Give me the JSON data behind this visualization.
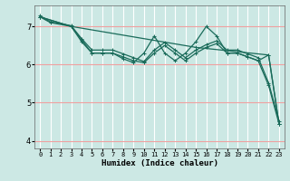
{
  "xlabel": "Humidex (Indice chaleur)",
  "ylabel": "",
  "background_color": "#cce8e4",
  "grid_color": "#f5b8b8",
  "line_color": "#1a6b5a",
  "xlim": [
    -0.5,
    23.5
  ],
  "ylim": [
    3.8,
    7.55
  ],
  "yticks": [
    4,
    5,
    6,
    7
  ],
  "xticks": [
    0,
    1,
    2,
    3,
    4,
    5,
    6,
    7,
    8,
    9,
    10,
    11,
    12,
    13,
    14,
    15,
    16,
    17,
    18,
    19,
    20,
    21,
    22,
    23
  ],
  "lines": [
    {
      "x": [
        0,
        1,
        3,
        4,
        5,
        6,
        7,
        8,
        9,
        10,
        11,
        12,
        13,
        14,
        15,
        16,
        17,
        18,
        19,
        20,
        21,
        22,
        23
      ],
      "y": [
        7.25,
        7.1,
        7.0,
        6.65,
        6.3,
        6.3,
        6.3,
        6.2,
        6.1,
        6.05,
        6.3,
        6.5,
        6.3,
        6.1,
        6.3,
        6.45,
        6.55,
        6.3,
        6.3,
        6.2,
        6.1,
        5.45,
        4.45
      ]
    },
    {
      "x": [
        0,
        1,
        3,
        4,
        5,
        6,
        7,
        8,
        9,
        10,
        11,
        12,
        13,
        14,
        15,
        16,
        17,
        18,
        19,
        20,
        21,
        22,
        23
      ],
      "y": [
        7.28,
        7.12,
        7.02,
        6.68,
        6.38,
        6.38,
        6.38,
        6.28,
        6.18,
        6.08,
        6.38,
        6.58,
        6.38,
        6.18,
        6.38,
        6.52,
        6.62,
        6.38,
        6.38,
        6.28,
        6.18,
        5.52,
        4.52
      ]
    },
    {
      "x": [
        0,
        3,
        15,
        22,
        23
      ],
      "y": [
        7.25,
        7.0,
        6.45,
        6.25,
        4.45
      ]
    },
    {
      "x": [
        0,
        3,
        4,
        5,
        6,
        7,
        8,
        9,
        10,
        11,
        12,
        13,
        14,
        15,
        16,
        17,
        18,
        19,
        20,
        21,
        22,
        23
      ],
      "y": [
        7.25,
        7.0,
        6.6,
        6.3,
        6.3,
        6.3,
        6.15,
        6.05,
        6.3,
        6.75,
        6.3,
        6.1,
        6.3,
        6.6,
        7.0,
        6.75,
        6.3,
        6.3,
        6.2,
        6.1,
        6.25,
        4.45
      ]
    }
  ]
}
